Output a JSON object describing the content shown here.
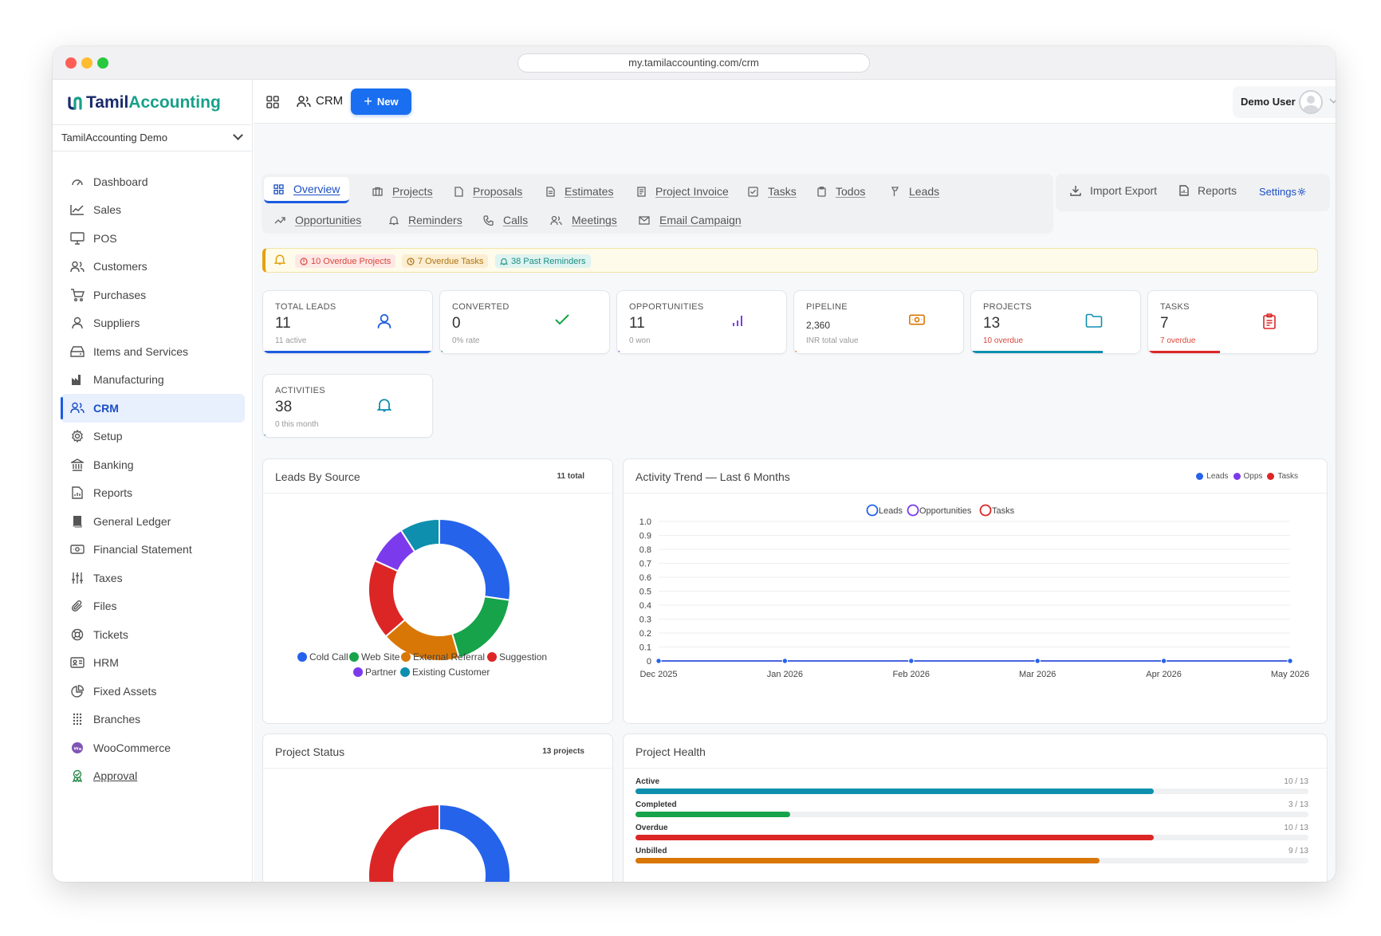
{
  "browser": {
    "url": "my.tamilaccounting.com/crm"
  },
  "brand": {
    "name_part1": "Tamil",
    "name_part2": "Accounting",
    "accent": "#18a08a",
    "primary": "#1a2b6d"
  },
  "company_select": {
    "value": "TamilAccounting Demo"
  },
  "sidebar": {
    "items": [
      {
        "label": "Dashboard",
        "icon": "gauge-icon"
      },
      {
        "label": "Sales",
        "icon": "chart-line-icon"
      },
      {
        "label": "POS",
        "icon": "monitor-icon"
      },
      {
        "label": "Customers",
        "icon": "users-icon"
      },
      {
        "label": "Purchases",
        "icon": "cart-icon"
      },
      {
        "label": "Suppliers",
        "icon": "user-icon"
      },
      {
        "label": "Items and Services",
        "icon": "box-icon"
      },
      {
        "label": "Manufacturing",
        "icon": "factory-icon"
      },
      {
        "label": "CRM",
        "icon": "users-icon",
        "active": true
      },
      {
        "label": "Setup",
        "icon": "gear-icon"
      },
      {
        "label": "Banking",
        "icon": "bank-icon"
      },
      {
        "label": "Reports",
        "icon": "report-icon"
      },
      {
        "label": "General Ledger",
        "icon": "book-icon"
      },
      {
        "label": "Financial Statement",
        "icon": "money-icon"
      },
      {
        "label": "Taxes",
        "icon": "sliders-icon"
      },
      {
        "label": "Files",
        "icon": "paperclip-icon"
      },
      {
        "label": "Tickets",
        "icon": "lifebuoy-icon"
      },
      {
        "label": "HRM",
        "icon": "id-card-icon"
      },
      {
        "label": "Fixed Assets",
        "icon": "pie-icon"
      },
      {
        "label": "Branches",
        "icon": "grid-dots-icon"
      },
      {
        "label": "WooCommerce",
        "icon": "woo-icon"
      },
      {
        "label": "Approval",
        "icon": "award-icon"
      }
    ]
  },
  "topbar": {
    "module_label": "CRM",
    "new_label": "New",
    "user_name": "Demo User"
  },
  "tabs": {
    "overview": "Overview",
    "projects": "Projects",
    "proposals": "Proposals",
    "estimates": "Estimates",
    "project_invoice": "Project Invoice",
    "tasks": "Tasks",
    "todos": "Todos",
    "leads": "Leads",
    "opportunities": "Opportunities",
    "reminders": "Reminders",
    "calls": "Calls",
    "meetings": "Meetings",
    "email_campaign": "Email Campaign"
  },
  "actions": {
    "import_export": "Import Export",
    "reports": "Reports",
    "settings": "Settings"
  },
  "alerts": {
    "overdue_projects": "10 Overdue Projects",
    "overdue_tasks": "7 Overdue Tasks",
    "past_reminders": "38 Past Reminders"
  },
  "stats": [
    {
      "label": "TOTAL LEADS",
      "value": "11",
      "sub": "11 active",
      "icon": "user-icon",
      "color": "#1b5be0",
      "progress": 1.0
    },
    {
      "label": "CONVERTED",
      "value": "0",
      "sub": "0% rate",
      "icon": "check-icon",
      "color": "#16a34a",
      "progress": 0.0
    },
    {
      "label": "OPPORTUNITIES",
      "value": "11",
      "sub": "0 won",
      "icon": "bars-icon",
      "color": "#7c3aed",
      "progress": 0.0
    },
    {
      "label": "PIPELINE",
      "value": "2,360",
      "sub": "INR total value",
      "icon": "money-icon",
      "color": "#d97706",
      "progress": 0.0
    },
    {
      "label": "PROJECTS",
      "value": "13",
      "sub": "10 overdue",
      "icon": "folder-icon",
      "color": "#0e8fae",
      "progress": 0.77
    },
    {
      "label": "TASKS",
      "value": "7",
      "sub": "7 overdue",
      "icon": "clipboard-icon",
      "color": "#dc2626",
      "progress": 0.42
    },
    {
      "label": "ACTIVITIES",
      "value": "38",
      "sub": "0 this month",
      "icon": "bell-icon",
      "color": "#0e8fae",
      "progress": 0.0
    }
  ],
  "leads_by_source": {
    "title": "Leads By Source",
    "badge": "11 total",
    "chart_data": {
      "type": "pie",
      "categories": [
        "Cold Call",
        "Web Site",
        "External Referral",
        "Suggestion",
        "Partner",
        "Existing Customer"
      ],
      "values": [
        3,
        2,
        2,
        2,
        1,
        1
      ],
      "colors": [
        "#2563eb",
        "#16a34a",
        "#d97706",
        "#dc2626",
        "#7c3aed",
        "#0e8fae"
      ]
    }
  },
  "activity_trend": {
    "title": "Activity Trend — Last 6 Months",
    "mini_legend": [
      "Leads",
      "Opps",
      "Tasks"
    ],
    "chart_data": {
      "type": "line",
      "x": [
        "Dec 2025",
        "Jan 2026",
        "Feb 2026",
        "Mar 2026",
        "Apr 2026",
        "May 2026"
      ],
      "series": [
        {
          "name": "Leads",
          "values": [
            0,
            0,
            0,
            0,
            0,
            0
          ],
          "color": "#2563eb"
        },
        {
          "name": "Opportunities",
          "values": [
            0,
            0,
            0,
            0,
            0,
            0
          ],
          "color": "#7c3aed"
        },
        {
          "name": "Tasks",
          "values": [
            0,
            0,
            0,
            0,
            0,
            0
          ],
          "color": "#dc2626"
        }
      ],
      "ylim": [
        0,
        1.0
      ],
      "yticks": [
        "1.0",
        "0.9",
        "0.8",
        "0.7",
        "0.6",
        "0.5",
        "0.4",
        "0.3",
        "0.2",
        "0.1",
        "0"
      ],
      "legend": "top-center"
    }
  },
  "project_status": {
    "title": "Project Status",
    "badge": "13 projects",
    "chart_data": {
      "type": "pie",
      "categories": [
        "",
        "",
        "",
        ""
      ],
      "values": [
        4,
        2,
        3,
        4
      ],
      "colors": [
        "#2563eb",
        "#16a34a",
        "#d97706",
        "#dc2626"
      ]
    }
  },
  "project_health": {
    "title": "Project Health",
    "rows": [
      {
        "label": "Active",
        "value": "10 / 13",
        "ratio": 0.77,
        "color": "#0e8fae"
      },
      {
        "label": "Completed",
        "value": "3 / 13",
        "ratio": 0.23,
        "color": "#16a34a"
      },
      {
        "label": "Overdue",
        "value": "10 / 13",
        "ratio": 0.77,
        "color": "#dc2626"
      },
      {
        "label": "Unbilled",
        "value": "9 / 13",
        "ratio": 0.69,
        "color": "#d97706"
      }
    ]
  }
}
